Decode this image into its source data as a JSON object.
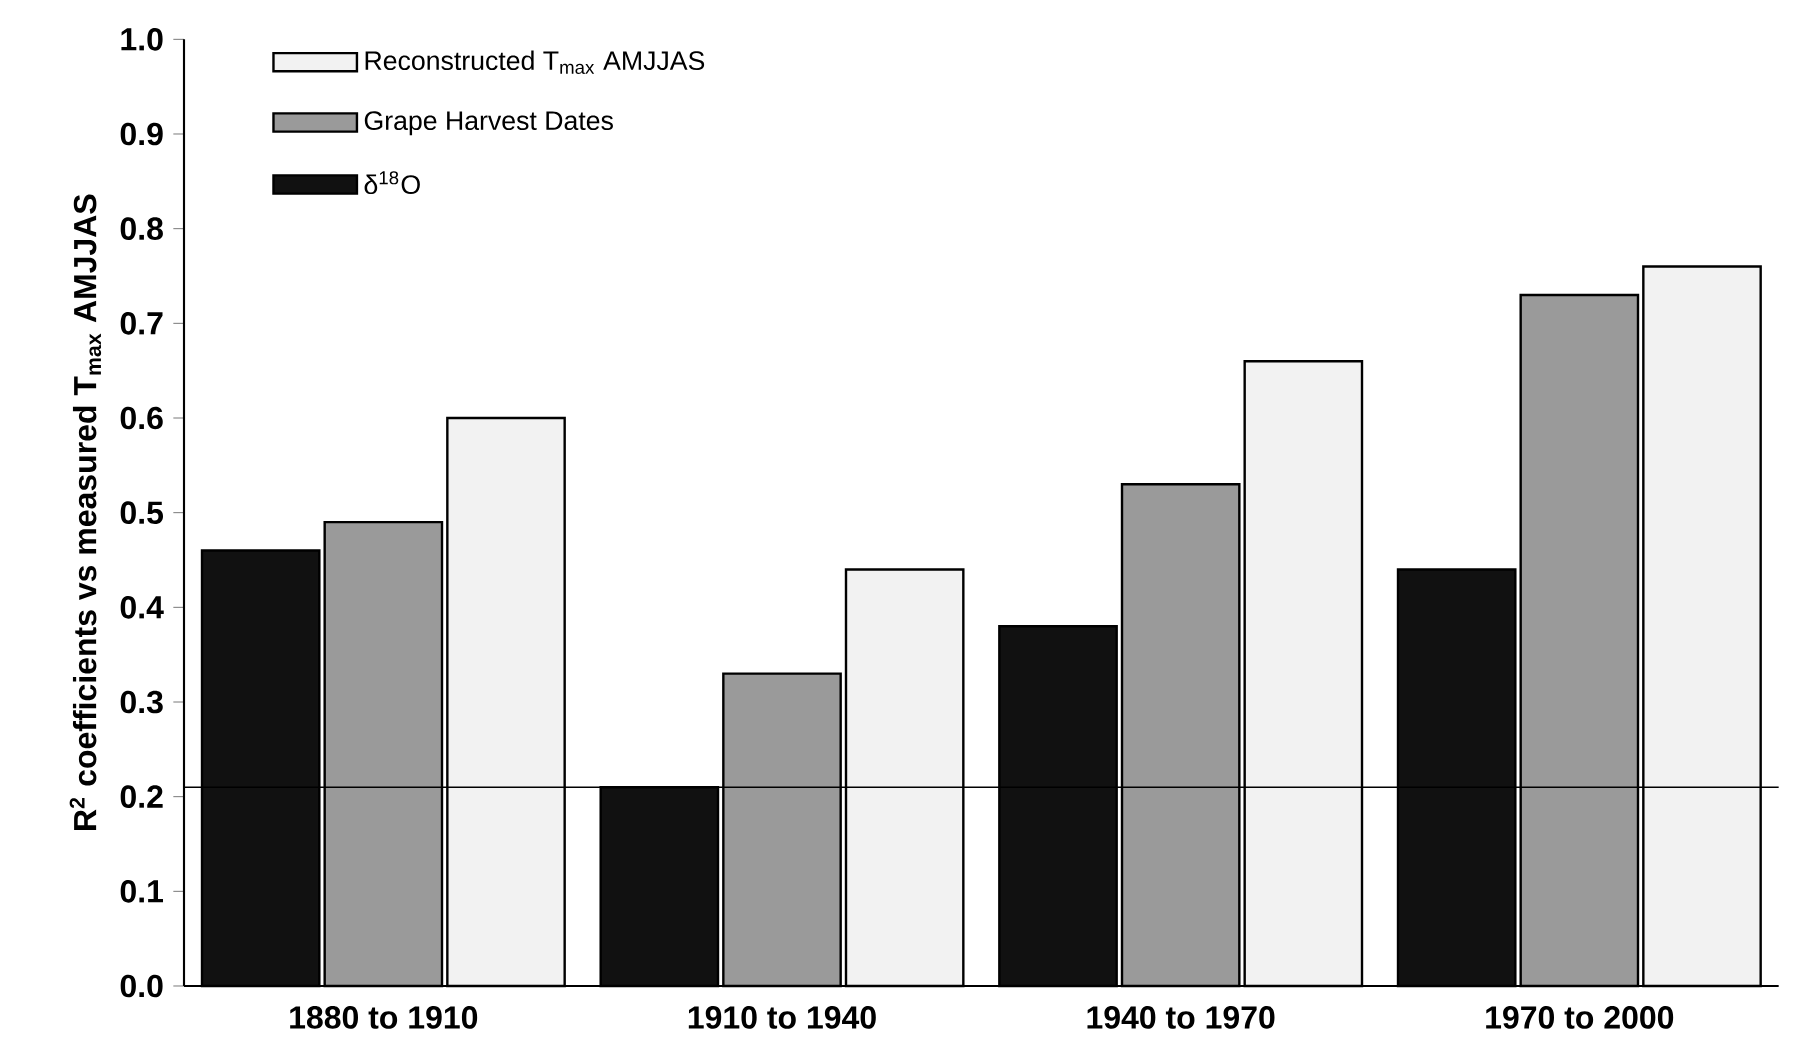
{
  "chart_data": {
    "type": "bar",
    "ylabel": "R$^{2}$ coefficients vs measured T$_{max}$ AMJJAS",
    "categories": [
      "1880 to 1910",
      "1910 to 1940",
      "1940 to 1970",
      "1970 to 2000"
    ],
    "series": [
      {
        "name": "δ$^{18}$O",
        "color": "#111111",
        "values": [
          0.46,
          0.21,
          0.38,
          0.44
        ]
      },
      {
        "name": "Grape Harvest Dates",
        "color": "#9a9a9a",
        "values": [
          0.49,
          0.33,
          0.53,
          0.73
        ]
      },
      {
        "name": "Reconstructed T$_{max}$ AMJJAS",
        "color": "#f2f2f2",
        "values": [
          0.6,
          0.44,
          0.66,
          0.76
        ]
      }
    ],
    "ylim": [
      0,
      1
    ],
    "yticks": [
      {
        "value": 0,
        "label": "0.0"
      },
      0.1,
      0.2,
      0.3,
      0.4,
      0.5,
      0.6,
      0.7,
      0.8,
      0.9,
      {
        "value": 1,
        "label": "1.0"
      }
    ],
    "ref_lines": [
      {
        "axis": "y",
        "value": 0.21,
        "color": "#000000"
      }
    ],
    "legend": "top left",
    "grid": false
  }
}
